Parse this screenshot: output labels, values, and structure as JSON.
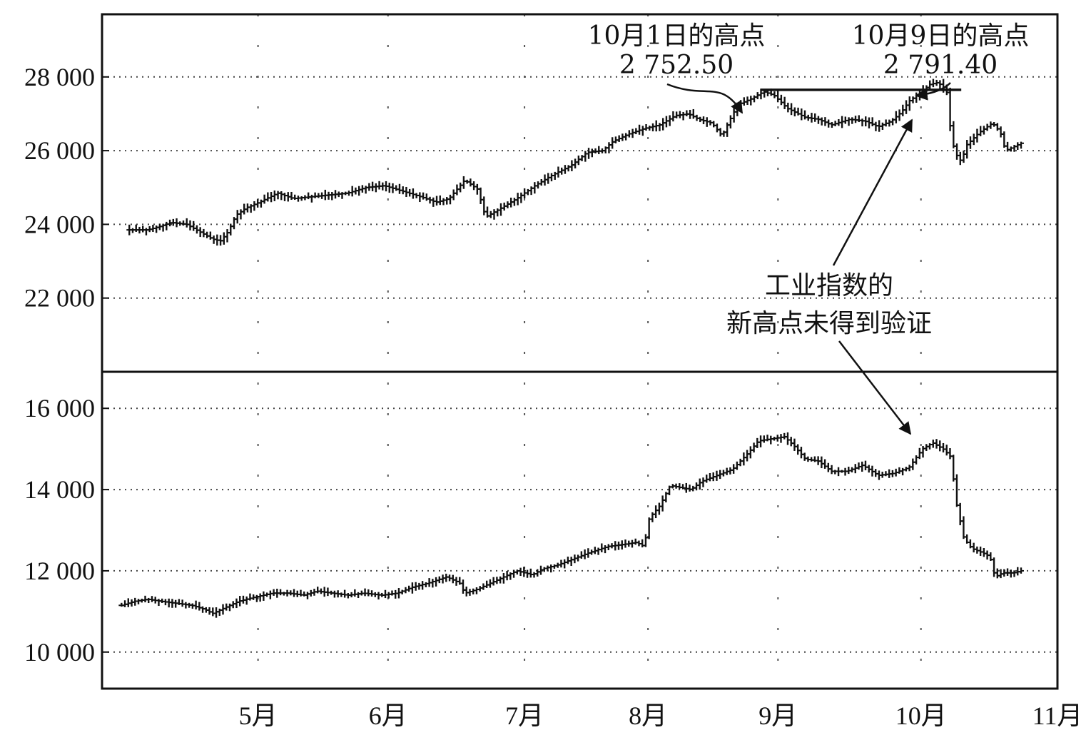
{
  "chart_data": [
    {
      "type": "bar",
      "subtype": "ohlc",
      "panel": "top",
      "title": "",
      "xlabel": "",
      "ylabel": "",
      "ylim": [
        20000,
        29700
      ],
      "yticks": [
        22000,
        24000,
        26000,
        28000
      ],
      "ytick_labels": [
        "22 000",
        "24 000",
        "26 000",
        "28 000"
      ],
      "xlim": [
        3.55,
        10.9
      ],
      "xticks": [
        4.75,
        5.75,
        6.8,
        7.75,
        8.75,
        9.85,
        10.9
      ],
      "xtick_labels": [
        "5月",
        "6月",
        "7月",
        "8月",
        "9月",
        "10月",
        "11月"
      ],
      "grid": true,
      "path": [
        [
          3.76,
          23850
        ],
        [
          3.9,
          23850
        ],
        [
          4.0,
          23950
        ],
        [
          4.08,
          24050
        ],
        [
          4.2,
          24000
        ],
        [
          4.3,
          23800
        ],
        [
          4.4,
          23600
        ],
        [
          4.46,
          23550
        ],
        [
          4.52,
          23800
        ],
        [
          4.58,
          24250
        ],
        [
          4.66,
          24450
        ],
        [
          4.76,
          24600
        ],
        [
          4.9,
          24850
        ],
        [
          5.02,
          24700
        ],
        [
          5.16,
          24750
        ],
        [
          5.3,
          24800
        ],
        [
          5.44,
          24850
        ],
        [
          5.58,
          25000
        ],
        [
          5.72,
          25050
        ],
        [
          5.86,
          24900
        ],
        [
          6.0,
          24750
        ],
        [
          6.12,
          24600
        ],
        [
          6.22,
          24700
        ],
        [
          6.34,
          25200
        ],
        [
          6.44,
          24950
        ],
        [
          6.5,
          24200
        ],
        [
          6.6,
          24400
        ],
        [
          6.74,
          24700
        ],
        [
          6.88,
          25050
        ],
        [
          7.02,
          25350
        ],
        [
          7.16,
          25600
        ],
        [
          7.28,
          25950
        ],
        [
          7.4,
          26000
        ],
        [
          7.48,
          26250
        ],
        [
          7.6,
          26450
        ],
        [
          7.72,
          26600
        ],
        [
          7.84,
          26700
        ],
        [
          7.96,
          26950
        ],
        [
          8.06,
          27000
        ],
        [
          8.14,
          26850
        ],
        [
          8.24,
          26750
        ],
        [
          8.32,
          26400
        ],
        [
          8.36,
          26700
        ],
        [
          8.44,
          27250
        ],
        [
          8.54,
          27400
        ],
        [
          8.64,
          27600
        ],
        [
          8.72,
          27500
        ],
        [
          8.82,
          27150
        ],
        [
          8.96,
          26900
        ],
        [
          9.06,
          26850
        ],
        [
          9.16,
          26700
        ],
        [
          9.3,
          26850
        ],
        [
          9.42,
          26800
        ],
        [
          9.52,
          26650
        ],
        [
          9.62,
          26800
        ],
        [
          9.7,
          27050
        ],
        [
          9.76,
          27350
        ],
        [
          9.84,
          27550
        ],
        [
          9.92,
          27800
        ],
        [
          9.98,
          27850
        ],
        [
          10.03,
          27700
        ],
        [
          10.06,
          27500
        ],
        [
          10.08,
          26350
        ],
        [
          10.12,
          25900
        ],
        [
          10.16,
          25700
        ],
        [
          10.2,
          26150
        ],
        [
          10.3,
          26500
        ],
        [
          10.4,
          26750
        ],
        [
          10.46,
          26500
        ],
        [
          10.5,
          26000
        ],
        [
          10.56,
          26100
        ],
        [
          10.62,
          26200
        ]
      ],
      "reference_line": {
        "value": 27650,
        "from_x": 8.62,
        "to_x": 10.16
      },
      "annotations": [
        {
          "line1": "10月1日的高点",
          "line2": "2 752.50"
        },
        {
          "line1": "10月9日的高点",
          "line2": "2 791.40"
        },
        {
          "line1": "工业指数的",
          "line2": "新高点未得到验证"
        }
      ]
    },
    {
      "type": "bar",
      "subtype": "ohlc",
      "panel": "bottom",
      "title": "",
      "xlabel": "",
      "ylabel": "",
      "ylim": [
        9100,
        16900
      ],
      "yticks": [
        10000,
        12000,
        14000,
        16000
      ],
      "ytick_labels": [
        "10 000",
        "12 000",
        "14 000",
        "16 000"
      ],
      "xlim": [
        3.55,
        10.9
      ],
      "grid": true,
      "path": [
        [
          3.7,
          11150
        ],
        [
          3.8,
          11250
        ],
        [
          3.9,
          11300
        ],
        [
          4.0,
          11250
        ],
        [
          4.12,
          11200
        ],
        [
          4.24,
          11150
        ],
        [
          4.34,
          11050
        ],
        [
          4.4,
          10950
        ],
        [
          4.5,
          11100
        ],
        [
          4.6,
          11250
        ],
        [
          4.72,
          11350
        ],
        [
          4.86,
          11450
        ],
        [
          4.98,
          11450
        ],
        [
          5.1,
          11400
        ],
        [
          5.2,
          11500
        ],
        [
          5.32,
          11450
        ],
        [
          5.44,
          11400
        ],
        [
          5.56,
          11450
        ],
        [
          5.7,
          11400
        ],
        [
          5.82,
          11450
        ],
        [
          5.94,
          11600
        ],
        [
          6.06,
          11700
        ],
        [
          6.2,
          11850
        ],
        [
          6.3,
          11700
        ],
        [
          6.34,
          11450
        ],
        [
          6.44,
          11550
        ],
        [
          6.54,
          11700
        ],
        [
          6.64,
          11850
        ],
        [
          6.74,
          12000
        ],
        [
          6.86,
          11900
        ],
        [
          6.94,
          12050
        ],
        [
          7.06,
          12150
        ],
        [
          7.18,
          12300
        ],
        [
          7.3,
          12450
        ],
        [
          7.44,
          12600
        ],
        [
          7.56,
          12650
        ],
        [
          7.66,
          12700
        ],
        [
          7.72,
          12600
        ],
        [
          7.76,
          13300
        ],
        [
          7.84,
          13600
        ],
        [
          7.92,
          14100
        ],
        [
          8.0,
          14050
        ],
        [
          8.08,
          14000
        ],
        [
          8.16,
          14200
        ],
        [
          8.28,
          14350
        ],
        [
          8.4,
          14500
        ],
        [
          8.52,
          14900
        ],
        [
          8.6,
          15200
        ],
        [
          8.7,
          15250
        ],
        [
          8.8,
          15300
        ],
        [
          8.88,
          15050
        ],
        [
          8.96,
          14750
        ],
        [
          9.06,
          14700
        ],
        [
          9.16,
          14450
        ],
        [
          9.28,
          14450
        ],
        [
          9.4,
          14600
        ],
        [
          9.52,
          14350
        ],
        [
          9.64,
          14400
        ],
        [
          9.76,
          14550
        ],
        [
          9.86,
          15000
        ],
        [
          9.94,
          15150
        ],
        [
          10.02,
          15000
        ],
        [
          10.08,
          14800
        ],
        [
          10.12,
          13700
        ],
        [
          10.18,
          12800
        ],
        [
          10.24,
          12550
        ],
        [
          10.32,
          12450
        ],
        [
          10.38,
          12350
        ],
        [
          10.42,
          11850
        ],
        [
          10.48,
          11950
        ],
        [
          10.56,
          11950
        ],
        [
          10.62,
          12000
        ]
      ]
    }
  ]
}
